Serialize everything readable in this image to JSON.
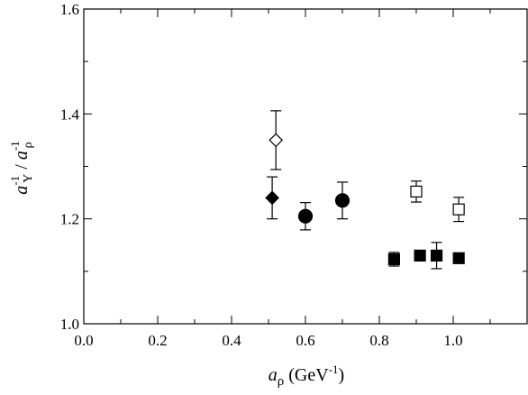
{
  "chart_data": {
    "type": "scatter",
    "title": "",
    "xlabel": {
      "symbol": "a",
      "subscript": "ρ",
      "unit_open": " (GeV",
      "unit_sup": "-1",
      "unit_close": ")"
    },
    "ylabel": {
      "num_symbol": "a",
      "num_sup": "-1",
      "num_sub": "Υ",
      "slash": " / ",
      "den_symbol": "a",
      "den_sup": "-1",
      "den_sub": "ρ"
    },
    "xlim": [
      0.0,
      1.2
    ],
    "ylim": [
      1.0,
      1.6
    ],
    "xticks": [
      0.0,
      0.2,
      0.4,
      0.6,
      0.8,
      1.0
    ],
    "xtick_labels": [
      "0.0",
      "0.2",
      "0.4",
      "0.6",
      "0.8",
      "1.0"
    ],
    "yticks": [
      1.0,
      1.2,
      1.4,
      1.6
    ],
    "ytick_labels": [
      "1.0",
      "1.2",
      "1.4",
      "1.6"
    ],
    "grid": false,
    "series": [
      {
        "marker": "diamond",
        "filled": false,
        "points": [
          {
            "x": 0.52,
            "y": 1.35,
            "err": 0.056
          }
        ]
      },
      {
        "marker": "diamond",
        "filled": true,
        "points": [
          {
            "x": 0.51,
            "y": 1.24,
            "err": 0.04
          }
        ]
      },
      {
        "marker": "circle",
        "filled": true,
        "points": [
          {
            "x": 0.6,
            "y": 1.205,
            "err": 0.026
          },
          {
            "x": 0.7,
            "y": 1.235,
            "err": 0.035
          }
        ]
      },
      {
        "marker": "square",
        "filled": false,
        "points": [
          {
            "x": 0.9,
            "y": 1.252,
            "err": 0.02
          },
          {
            "x": 1.015,
            "y": 1.218,
            "err": 0.023
          }
        ]
      },
      {
        "marker": "square",
        "filled": true,
        "points": [
          {
            "x": 0.84,
            "y": 1.123,
            "err": 0.013
          },
          {
            "x": 0.91,
            "y": 1.13,
            "err": 0.01
          },
          {
            "x": 0.955,
            "y": 1.13,
            "err": 0.025
          },
          {
            "x": 1.015,
            "y": 1.125,
            "err": 0.007
          }
        ]
      }
    ]
  }
}
